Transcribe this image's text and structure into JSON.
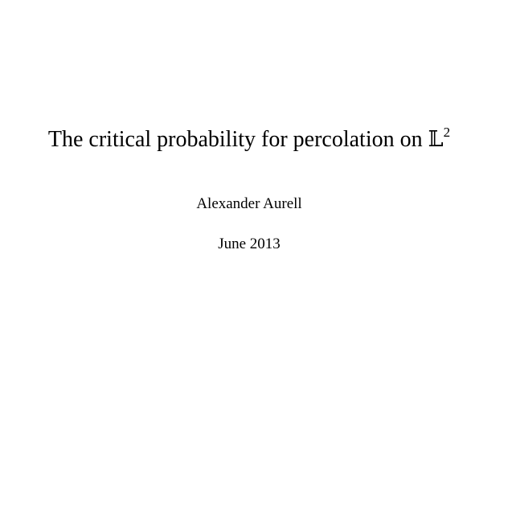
{
  "document": {
    "title": {
      "text": "The critical probability for percolation on ",
      "symbol": "𝕃",
      "superscript": "2"
    },
    "author": "Alexander Aurell",
    "date": "June 2013"
  }
}
